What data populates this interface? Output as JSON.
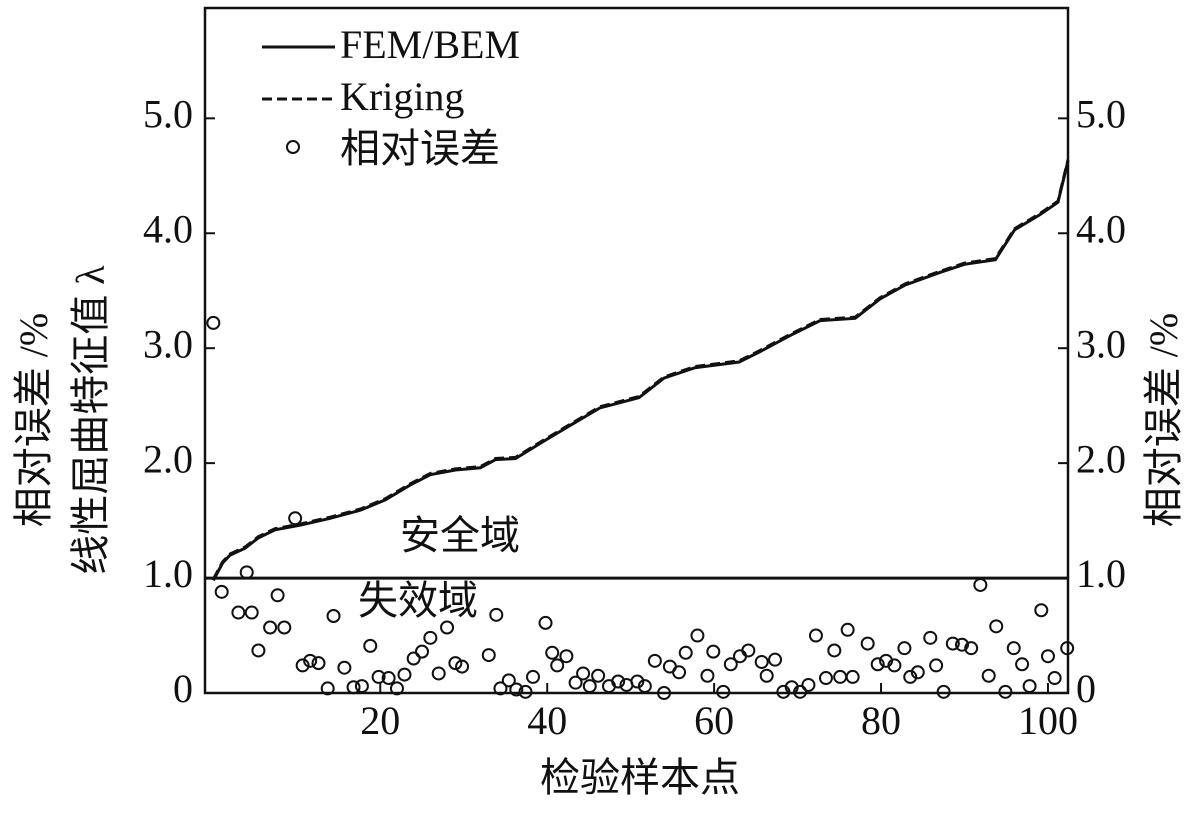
{
  "chart_data": {
    "type": "line",
    "xlabel": "检验样本点",
    "ylabel": [
      "相对误差 /%",
      "线性屈曲特征值 λ"
    ],
    "y2label": "相对误差 /%",
    "annotations": [
      "安全域",
      "失效域"
    ],
    "reference_line": 1,
    "xlim": [
      -1,
      102.4
    ],
    "xticks": [
      20,
      40,
      60,
      80,
      100
    ],
    "ylim": [
      0,
      5.96
    ],
    "yticks": [
      0,
      {
        "value": 1,
        "label": "1.0"
      },
      {
        "value": 2,
        "label": "2.0"
      },
      {
        "value": 3,
        "label": "3.0"
      },
      {
        "value": 4,
        "label": "4.0"
      },
      {
        "value": 5,
        "label": "5.0"
      }
    ],
    "y2lim": [
      0,
      5.96
    ],
    "y2ticks": [
      0,
      {
        "value": 1,
        "label": "1.0"
      },
      {
        "value": 2,
        "label": "2.0"
      },
      {
        "value": 3,
        "label": "3.0"
      },
      {
        "value": 4,
        "label": "4.0"
      },
      {
        "value": 5,
        "label": "5.0"
      }
    ],
    "legend": "upper-left",
    "series": [
      {
        "name": "FEM/BEM",
        "type": "line",
        "color": "#111111",
        "dash": "solid",
        "x": [
          0,
          1.1,
          2,
          3.8,
          5.4,
          7.4,
          10.4,
          14,
          17.6,
          20.6,
          23.6,
          26,
          29,
          32,
          33.8,
          36.2,
          39.8,
          42.8,
          46.3,
          51,
          54,
          57.7,
          63,
          65.5,
          69.1,
          72.7,
          76.9,
          79.9,
          82.9,
          87.1,
          90,
          93.7,
          96,
          99,
          101.2,
          102.4
        ],
        "values": [
          0.98,
          1.13,
          1.2,
          1.26,
          1.35,
          1.42,
          1.46,
          1.52,
          1.59,
          1.68,
          1.81,
          1.9,
          1.94,
          1.96,
          2.03,
          2.04,
          2.2,
          2.33,
          2.48,
          2.57,
          2.74,
          2.83,
          2.88,
          2.97,
          3.11,
          3.24,
          3.26,
          3.43,
          3.55,
          3.66,
          3.73,
          3.77,
          4.03,
          4.16,
          4.27,
          4.63
        ]
      },
      {
        "name": "Kriging",
        "type": "line",
        "color": "#111111",
        "dash": "dashed",
        "x": [
          0,
          1.1,
          2,
          3.8,
          5.4,
          7.4,
          10.4,
          14,
          17.6,
          20.6,
          23.6,
          26,
          29,
          32,
          33.8,
          36.2,
          39.8,
          42.8,
          46.3,
          51,
          54,
          57.7,
          63,
          65.5,
          69.1,
          72.7,
          76.9,
          79.9,
          82.9,
          87.1,
          90,
          93.7,
          96,
          99,
          101.2,
          102.4
        ],
        "values": [
          0.99,
          1.14,
          1.21,
          1.27,
          1.36,
          1.43,
          1.47,
          1.53,
          1.6,
          1.69,
          1.82,
          1.91,
          1.95,
          1.97,
          2.04,
          2.05,
          2.21,
          2.34,
          2.49,
          2.58,
          2.75,
          2.84,
          2.89,
          2.98,
          3.12,
          3.25,
          3.27,
          3.44,
          3.56,
          3.67,
          3.74,
          3.78,
          4.04,
          4.17,
          4.28,
          4.64
        ]
      },
      {
        "name": "相对误差",
        "type": "scatter",
        "axis": "y2",
        "color": "#111111",
        "x": [
          0,
          1,
          3,
          4.6,
          4,
          5.4,
          6.8,
          7.7,
          8.5,
          9.8,
          10.7,
          11.6,
          12.6,
          13.7,
          14.4,
          15.7,
          16.8,
          17.8,
          18.8,
          19.8,
          21,
          22,
          22.9,
          24,
          25,
          26,
          27,
          28,
          29,
          29.8,
          33,
          33.9,
          34.4,
          35.4,
          36.3,
          37.4,
          38.3,
          39.8,
          40.6,
          41.2,
          42.3,
          43.4,
          44.3,
          45.1,
          46.1,
          47.4,
          48.5,
          49.5,
          50.8,
          51.7,
          52.9,
          54,
          54.7,
          55.8,
          56.6,
          58,
          59.2,
          59.9,
          61.1,
          62,
          63.1,
          64.1,
          65.7,
          66.3,
          67.3,
          68.3,
          69.3,
          70.3,
          71.3,
          72.2,
          73.4,
          74.4,
          75.1,
          76,
          76.6,
          78.4,
          79.6,
          80.6,
          81.6,
          82.8,
          83.5,
          84.4,
          85.9,
          86.6,
          87.5,
          88.6,
          89.7,
          90.8,
          91.9,
          92.9,
          93.8,
          94.9,
          95.9,
          96.9,
          97.8,
          99.2,
          100,
          100.8,
          102.3
        ],
        "values": [
          3.22,
          0.88,
          0.7,
          0.7,
          1.05,
          0.37,
          0.57,
          0.85,
          0.57,
          1.52,
          0.24,
          0.28,
          0.26,
          0.04,
          0.67,
          0.22,
          0.05,
          0.06,
          0.41,
          0.14,
          0.13,
          0.04,
          0.16,
          0.3,
          0.36,
          0.48,
          0.17,
          0.57,
          0.26,
          0.23,
          0.33,
          0.68,
          0.04,
          0.11,
          0.03,
          0.01,
          0.14,
          0.61,
          0.35,
          0.24,
          0.32,
          0.09,
          0.17,
          0.06,
          0.15,
          0.06,
          0.1,
          0.07,
          0.1,
          0.06,
          0.28,
          0,
          0.23,
          0.18,
          0.35,
          0.5,
          0.15,
          0.36,
          0.01,
          0.25,
          0.32,
          0.37,
          0.27,
          0.15,
          0.29,
          0.01,
          0.05,
          0.01,
          0.07,
          0.5,
          0.13,
          0.37,
          0.14,
          0.55,
          0.14,
          0.43,
          0.25,
          0.28,
          0.24,
          0.39,
          0.14,
          0.18,
          0.48,
          0.24,
          0.01,
          0.43,
          0.42,
          0.39,
          0.94,
          0.15,
          0.58,
          0.01,
          0.39,
          0.25,
          0.06,
          0.72,
          0.32,
          0.13,
          0.39
        ]
      }
    ]
  }
}
